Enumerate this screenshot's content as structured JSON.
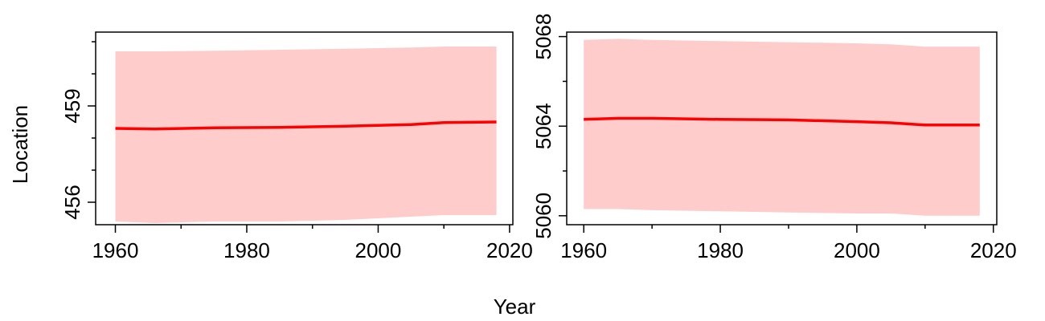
{
  "figure": {
    "xlabel": "Year",
    "ylabel": "Location"
  },
  "chart_data": [
    {
      "type": "line",
      "xlim": [
        1957,
        2020.5
      ],
      "ylim": [
        455.3,
        461.3
      ],
      "x_ticks": [
        1960,
        1980,
        2000,
        2020
      ],
      "x_tick_labels": [
        "1960",
        "1980",
        "2000",
        "2020"
      ],
      "x_minor_ticks": [
        1970,
        1990,
        2010
      ],
      "y_ticks": [
        456,
        459
      ],
      "y_tick_labels": [
        "456",
        "459"
      ],
      "y_minor_ticks": [
        457,
        458,
        460,
        461
      ],
      "grid": false,
      "colors": {
        "line": "#ff0000",
        "band": "#ffcccc"
      },
      "series": [
        {
          "x": [
            1960,
            1966,
            1975,
            1985,
            1995,
            2005,
            2010,
            2018
          ],
          "values": [
            458.3,
            458.28,
            458.32,
            458.33,
            458.37,
            458.42,
            458.48,
            458.5
          ]
        }
      ],
      "band": {
        "x": [
          1960,
          1966,
          1975,
          1985,
          1995,
          2005,
          2010,
          2018
        ],
        "lower": [
          455.4,
          455.35,
          455.4,
          455.4,
          455.45,
          455.55,
          455.6,
          455.6
        ],
        "upper": [
          460.7,
          460.7,
          460.72,
          460.75,
          460.78,
          460.82,
          460.85,
          460.85
        ]
      }
    },
    {
      "type": "line",
      "xlim": [
        1957.5,
        2020.5
      ],
      "ylim": [
        5059.6,
        5068.2
      ],
      "x_ticks": [
        1960,
        1980,
        2000,
        2020
      ],
      "x_tick_labels": [
        "1960",
        "1980",
        "2000",
        "2020"
      ],
      "x_minor_ticks": [
        1970,
        1990,
        2010
      ],
      "y_ticks": [
        5060,
        5064,
        5068
      ],
      "y_tick_labels": [
        "5060",
        "5064",
        "5068"
      ],
      "y_minor_ticks": [
        5062,
        5066
      ],
      "grid": false,
      "colors": {
        "line": "#ff0000",
        "band": "#ffcccc"
      },
      "series": [
        {
          "x": [
            1960,
            1965,
            1970,
            1980,
            1990,
            2000,
            2005,
            2010,
            2018
          ],
          "values": [
            5064.3,
            5064.35,
            5064.35,
            5064.3,
            5064.28,
            5064.2,
            5064.15,
            5064.05,
            5064.05
          ]
        }
      ],
      "band": {
        "x": [
          1960,
          1965,
          1970,
          1980,
          1990,
          2000,
          2005,
          2010,
          2018
        ],
        "lower": [
          5060.3,
          5060.3,
          5060.25,
          5060.2,
          5060.15,
          5060.1,
          5060.1,
          5060.0,
          5060.0
        ],
        "upper": [
          5067.85,
          5067.9,
          5067.85,
          5067.8,
          5067.75,
          5067.7,
          5067.65,
          5067.55,
          5067.55
        ]
      }
    }
  ]
}
